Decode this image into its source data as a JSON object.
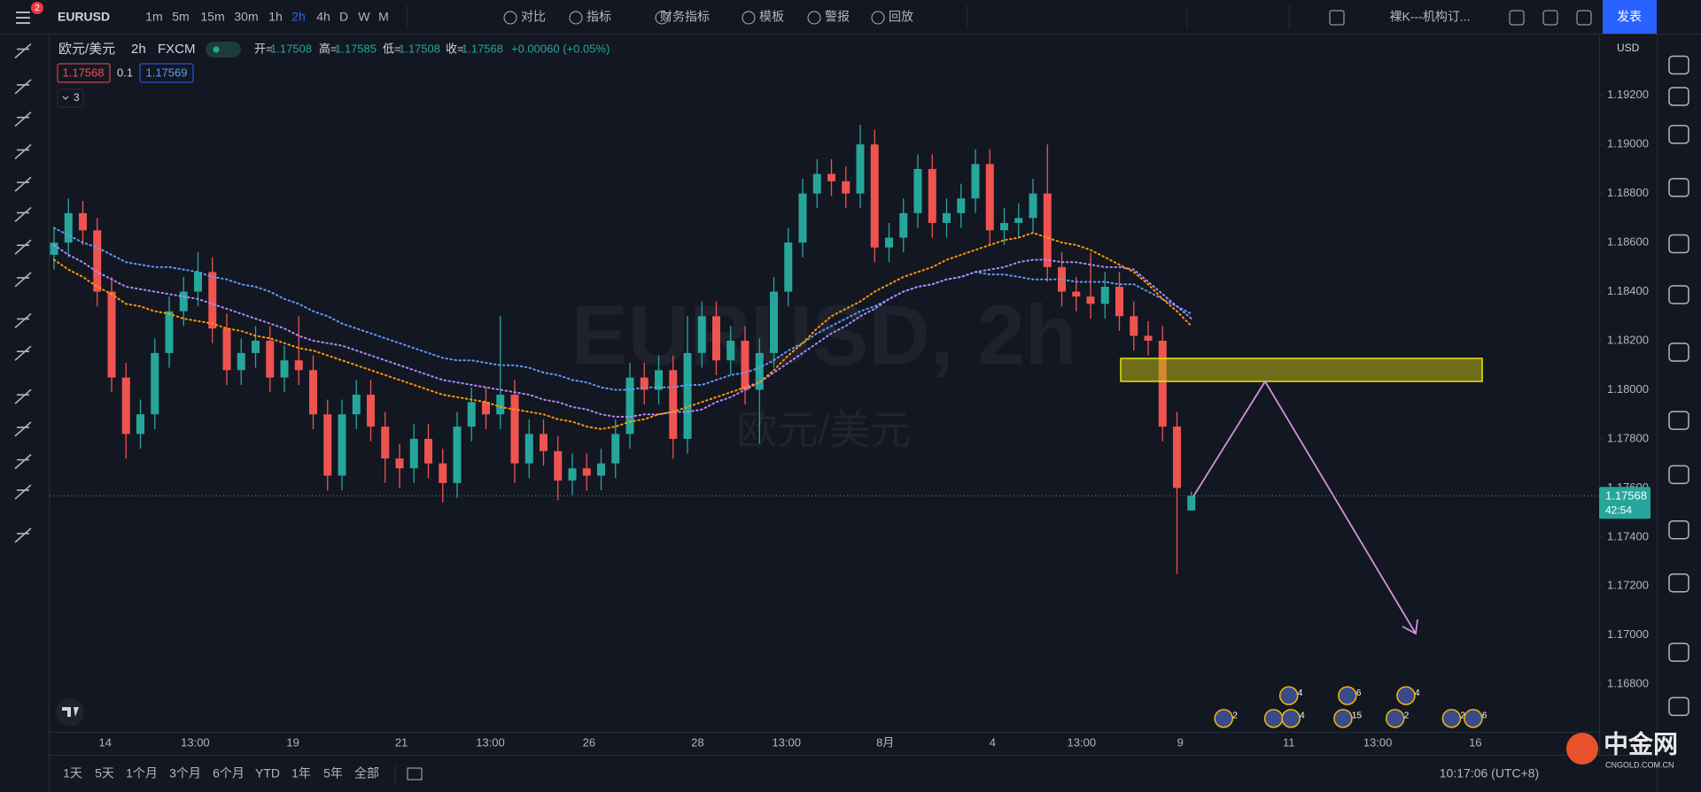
{
  "toolbar": {
    "badge": "2",
    "symbol": "EURUSD",
    "intervals": [
      "1m",
      "5m",
      "15m",
      "30m",
      "1h",
      "2h",
      "4h",
      "D",
      "W",
      "M"
    ],
    "compare": "对比",
    "indicators": "指标",
    "financials": "财务指标",
    "templates": "模板",
    "alerts": "警报",
    "replay": "回放",
    "layout_name": "裸K---机构订...",
    "publish": "发表"
  },
  "legend": {
    "name": "欧元/美元",
    "interval": "2h",
    "exchange": "FXCM",
    "open_label": "开=",
    "high_label": "高=",
    "low_label": "低=",
    "close_label": "收=",
    "change": "+0.00060 (+0.05%)",
    "sell": "1.17568",
    "spread": "0.1",
    "buy": "1.17569",
    "collapsed_count": "3"
  },
  "watermark": {
    "symbol": "EURUSD, 2h",
    "name": "欧元/美元"
  },
  "price_axis": {
    "currency": "USD",
    "countdown": "42:54"
  },
  "chart_data": {
    "type": "candlestick",
    "up_color": "#26a69a",
    "down_color": "#ef5350",
    "grid": false,
    "ylim": [
      1.16606,
      1.19448
    ],
    "yticks": [
      {
        "value": 1.168,
        "label": "1.16800"
      },
      {
        "value": 1.17,
        "label": "1.17000"
      },
      {
        "value": 1.172,
        "label": "1.17200"
      },
      {
        "value": 1.174,
        "label": "1.17400"
      },
      {
        "value": 1.176,
        "label": "1.17600"
      },
      {
        "value": 1.178,
        "label": "1.17800"
      },
      {
        "value": 1.18,
        "label": "1.18000"
      },
      {
        "value": 1.182,
        "label": "1.18200"
      },
      {
        "value": 1.184,
        "label": "1.18400"
      },
      {
        "value": 1.186,
        "label": "1.18600"
      },
      {
        "value": 1.188,
        "label": "1.18800"
      },
      {
        "value": 1.19,
        "label": "1.19000"
      },
      {
        "value": 1.192,
        "label": "1.19200"
      }
    ],
    "x_labels": [
      "14",
      "13:00",
      "19",
      "21",
      "13:00",
      "26",
      "28",
      "13:00",
      "8月",
      "4",
      "13:00",
      "9",
      "11",
      "13:00",
      "16"
    ],
    "ohlc": [
      [
        1.1855,
        1.1866,
        1.1849,
        1.186
      ],
      [
        1.186,
        1.1878,
        1.1854,
        1.1872
      ],
      [
        1.1872,
        1.1877,
        1.1859,
        1.1865
      ],
      [
        1.1865,
        1.187,
        1.1834,
        1.184
      ],
      [
        1.184,
        1.1846,
        1.1799,
        1.1805
      ],
      [
        1.1805,
        1.1811,
        1.1772,
        1.1782
      ],
      [
        1.1782,
        1.1796,
        1.1776,
        1.179
      ],
      [
        1.179,
        1.1821,
        1.1784,
        1.1815
      ],
      [
        1.1815,
        1.1838,
        1.1809,
        1.1832
      ],
      [
        1.1832,
        1.1846,
        1.1826,
        1.184
      ],
      [
        1.184,
        1.1856,
        1.1834,
        1.1848
      ],
      [
        1.1848,
        1.1854,
        1.1819,
        1.1825
      ],
      [
        1.1825,
        1.1831,
        1.1802,
        1.1808
      ],
      [
        1.1808,
        1.1821,
        1.1802,
        1.1815
      ],
      [
        1.1815,
        1.1826,
        1.1809,
        1.182
      ],
      [
        1.182,
        1.1826,
        1.1799,
        1.1805
      ],
      [
        1.1805,
        1.1818,
        1.1799,
        1.1812
      ],
      [
        1.1812,
        1.183,
        1.1802,
        1.1808
      ],
      [
        1.1808,
        1.1814,
        1.1784,
        1.179
      ],
      [
        1.179,
        1.1796,
        1.1759,
        1.1765
      ],
      [
        1.1765,
        1.1796,
        1.1759,
        1.179
      ],
      [
        1.179,
        1.1804,
        1.1784,
        1.1798
      ],
      [
        1.1798,
        1.1804,
        1.1779,
        1.1785
      ],
      [
        1.1785,
        1.1791,
        1.1762,
        1.1772
      ],
      [
        1.1772,
        1.1778,
        1.176,
        1.1768
      ],
      [
        1.1768,
        1.1786,
        1.1762,
        1.178
      ],
      [
        1.178,
        1.1786,
        1.1764,
        1.177
      ],
      [
        1.177,
        1.1776,
        1.1754,
        1.1762
      ],
      [
        1.1762,
        1.1791,
        1.1756,
        1.1785
      ],
      [
        1.1785,
        1.1801,
        1.1779,
        1.1795
      ],
      [
        1.1795,
        1.1801,
        1.1784,
        1.179
      ],
      [
        1.179,
        1.183,
        1.1784,
        1.1798
      ],
      [
        1.1798,
        1.1804,
        1.1762,
        1.177
      ],
      [
        1.177,
        1.1788,
        1.1764,
        1.1782
      ],
      [
        1.1782,
        1.1788,
        1.1769,
        1.1775
      ],
      [
        1.1775,
        1.1781,
        1.1755,
        1.1763
      ],
      [
        1.1763,
        1.1774,
        1.1757,
        1.1768
      ],
      [
        1.1768,
        1.1774,
        1.1759,
        1.1765
      ],
      [
        1.1765,
        1.1776,
        1.1759,
        1.177
      ],
      [
        1.177,
        1.1788,
        1.1764,
        1.1782
      ],
      [
        1.1782,
        1.1811,
        1.1776,
        1.1805
      ],
      [
        1.1805,
        1.1811,
        1.1794,
        1.18
      ],
      [
        1.18,
        1.1814,
        1.1794,
        1.1808
      ],
      [
        1.1808,
        1.1814,
        1.1772,
        1.178
      ],
      [
        1.178,
        1.183,
        1.1774,
        1.1815
      ],
      [
        1.1815,
        1.1836,
        1.1809,
        1.183
      ],
      [
        1.183,
        1.1836,
        1.1806,
        1.1812
      ],
      [
        1.1812,
        1.1826,
        1.1806,
        1.182
      ],
      [
        1.182,
        1.1826,
        1.1794,
        1.18
      ],
      [
        1.18,
        1.1821,
        1.1778,
        1.1815
      ],
      [
        1.1815,
        1.1846,
        1.1809,
        1.184
      ],
      [
        1.184,
        1.1866,
        1.1834,
        1.186
      ],
      [
        1.186,
        1.1886,
        1.1854,
        1.188
      ],
      [
        1.188,
        1.1894,
        1.1874,
        1.1888
      ],
      [
        1.1888,
        1.1894,
        1.1879,
        1.1885
      ],
      [
        1.1885,
        1.1891,
        1.1874,
        1.188
      ],
      [
        1.188,
        1.1908,
        1.1874,
        1.19
      ],
      [
        1.19,
        1.1906,
        1.1852,
        1.1858
      ],
      [
        1.1858,
        1.1868,
        1.1852,
        1.1862
      ],
      [
        1.1862,
        1.1878,
        1.1856,
        1.1872
      ],
      [
        1.1872,
        1.1896,
        1.1866,
        1.189
      ],
      [
        1.189,
        1.1896,
        1.1862,
        1.1868
      ],
      [
        1.1868,
        1.1878,
        1.1862,
        1.1872
      ],
      [
        1.1872,
        1.1884,
        1.1866,
        1.1878
      ],
      [
        1.1878,
        1.1898,
        1.1872,
        1.1892
      ],
      [
        1.1892,
        1.1898,
        1.1859,
        1.1865
      ],
      [
        1.1865,
        1.1874,
        1.1859,
        1.1868
      ],
      [
        1.1868,
        1.1876,
        1.1862,
        1.187
      ],
      [
        1.187,
        1.1886,
        1.1864,
        1.188
      ],
      [
        1.188,
        1.19,
        1.1844,
        1.185
      ],
      [
        1.185,
        1.1856,
        1.1834,
        1.184
      ],
      [
        1.184,
        1.1846,
        1.1832,
        1.1838
      ],
      [
        1.1838,
        1.1856,
        1.1829,
        1.1835
      ],
      [
        1.1835,
        1.1848,
        1.1829,
        1.1842
      ],
      [
        1.1842,
        1.1848,
        1.1824,
        1.183
      ],
      [
        1.183,
        1.1836,
        1.1816,
        1.1822
      ],
      [
        1.1822,
        1.1828,
        1.1814,
        1.182
      ],
      [
        1.182,
        1.1826,
        1.1779,
        1.1785
      ],
      [
        1.1785,
        1.1791,
        1.1725,
        1.176
      ],
      [
        1.17508,
        1.17585,
        1.17508,
        1.17568
      ]
    ],
    "lines": [
      {
        "color": "#5b9cf6",
        "values": [
          1.1866,
          1.1863,
          1.186,
          1.1858,
          1.1855,
          1.1852,
          1.1851,
          1.185,
          1.185,
          1.1849,
          1.1848,
          1.1846,
          1.1845,
          1.1843,
          1.1842,
          1.184,
          1.1837,
          1.1835,
          1.1832,
          1.183,
          1.1827,
          1.1825,
          1.1823,
          1.1821,
          1.1819,
          1.1817,
          1.1815,
          1.1813,
          1.1812,
          1.1812,
          1.1811,
          1.181,
          1.181,
          1.1809,
          1.1807,
          1.1806,
          1.1804,
          1.1803,
          1.1801,
          1.18,
          1.18,
          1.1801,
          1.1801,
          1.1801,
          1.1802,
          1.1802,
          1.1804,
          1.1806,
          1.1807,
          1.1809,
          1.1812,
          1.1816,
          1.1819,
          1.1823,
          1.1826,
          1.1829,
          1.1832,
          1.1834,
          1.1837,
          1.184,
          1.1842,
          1.1843,
          1.1845,
          1.1846,
          1.1848,
          1.1847,
          1.1847,
          1.1846,
          1.1845,
          1.1845,
          1.1845,
          1.1844,
          1.1844,
          1.1844,
          1.1843,
          1.1843,
          1.184,
          1.1837,
          1.1834,
          1.1831
        ]
      },
      {
        "color": "#b388ff",
        "values": [
          1.1859,
          1.1855,
          1.1852,
          1.1848,
          1.1845,
          1.1842,
          1.1841,
          1.184,
          1.1839,
          1.1838,
          1.1837,
          1.1835,
          1.1833,
          1.1831,
          1.1829,
          1.1827,
          1.1825,
          1.1822,
          1.182,
          1.1819,
          1.1818,
          1.1816,
          1.1814,
          1.1812,
          1.181,
          1.1808,
          1.1806,
          1.1804,
          1.1803,
          1.1802,
          1.1801,
          1.18,
          1.1799,
          1.1798,
          1.1796,
          1.1795,
          1.1793,
          1.1792,
          1.179,
          1.1789,
          1.1789,
          1.179,
          1.179,
          1.1791,
          1.1791,
          1.1792,
          1.1795,
          1.1797,
          1.18,
          1.1803,
          1.1807,
          1.1811,
          1.1815,
          1.1819,
          1.1823,
          1.1826,
          1.183,
          1.1833,
          1.1837,
          1.184,
          1.1842,
          1.1843,
          1.1845,
          1.1846,
          1.1848,
          1.1849,
          1.185,
          1.1852,
          1.1853,
          1.1853,
          1.1852,
          1.1852,
          1.1851,
          1.185,
          1.185,
          1.1849,
          1.1844,
          1.1839,
          1.1834,
          1.1829
        ]
      },
      {
        "color": "#ff9800",
        "values": [
          1.1853,
          1.1849,
          1.1846,
          1.1842,
          1.1839,
          1.1835,
          1.1834,
          1.1832,
          1.1831,
          1.1829,
          1.1828,
          1.1827,
          1.1825,
          1.1824,
          1.1822,
          1.1821,
          1.1819,
          1.1817,
          1.1816,
          1.1814,
          1.1812,
          1.181,
          1.1808,
          1.1806,
          1.1804,
          1.1802,
          1.18,
          1.1798,
          1.1797,
          1.1796,
          1.1795,
          1.1793,
          1.1792,
          1.1791,
          1.179,
          1.1788,
          1.1787,
          1.1785,
          1.1784,
          1.1785,
          1.1787,
          1.1788,
          1.179,
          1.1791,
          1.1793,
          1.1795,
          1.1797,
          1.1799,
          1.1801,
          1.1803,
          1.1808,
          1.1814,
          1.1819,
          1.1825,
          1.183,
          1.1833,
          1.1836,
          1.184,
          1.1843,
          1.1846,
          1.1848,
          1.185,
          1.1853,
          1.1855,
          1.1857,
          1.1859,
          1.1861,
          1.1862,
          1.1864,
          1.1862,
          1.186,
          1.1859,
          1.1857,
          1.1854,
          1.1851,
          1.1848,
          1.1843,
          1.1837,
          1.1832,
          1.1826
        ]
      }
    ]
  },
  "events": [
    "2",
    "4",
    "6",
    "4",
    "3",
    "4",
    "15",
    "2",
    "21",
    "6"
  ],
  "bottom_bar": {
    "ranges": [
      "1天",
      "5天",
      "1个月",
      "3个月",
      "6个月",
      "YTD",
      "1年",
      "5年",
      "全部"
    ],
    "time": "10:17:06 (UTC+8)"
  },
  "brand": {
    "name": "中金网",
    "url": "CNGOLD.COM.CN"
  }
}
